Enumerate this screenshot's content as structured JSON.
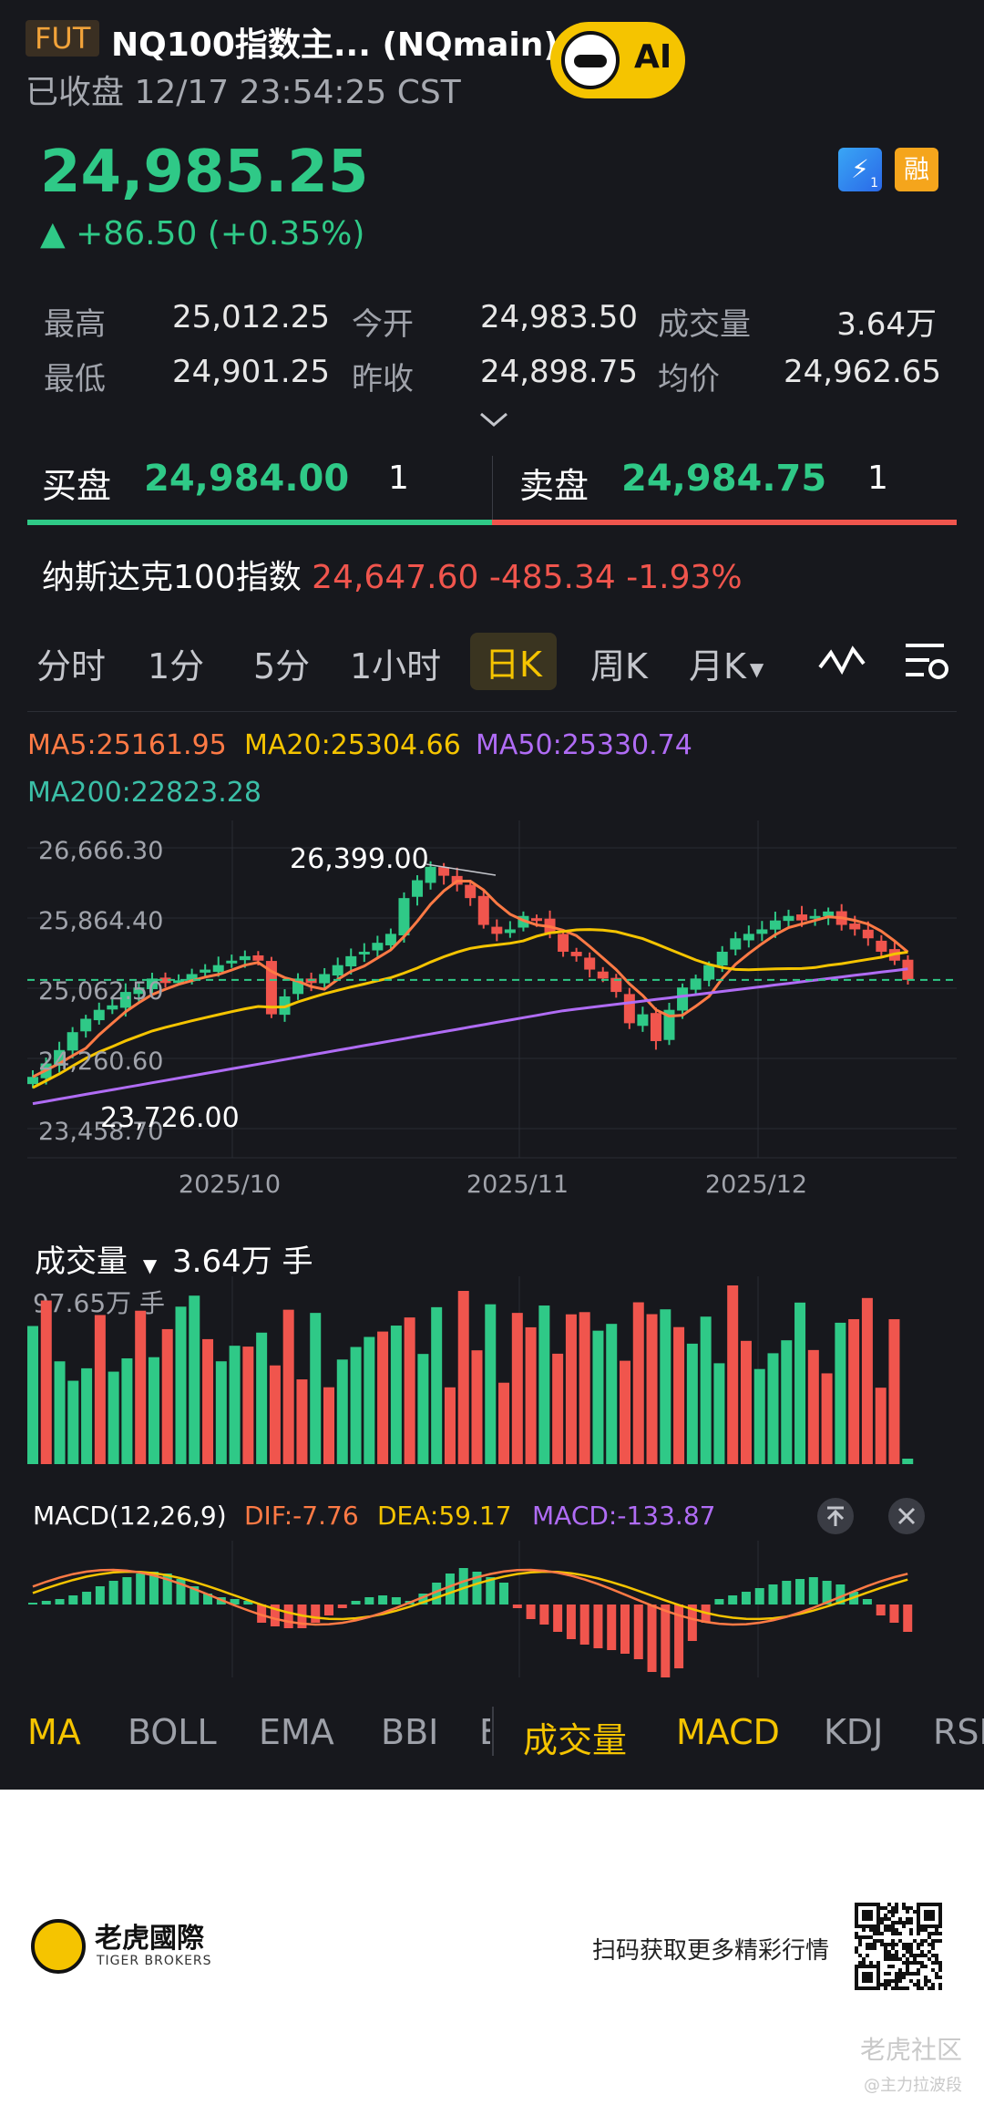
{
  "header": {
    "tag": "FUT",
    "title": "NQ100指数主... (NQmain)",
    "status": "已收盘 12/17 23:54:25 CST",
    "ai_label": "AI"
  },
  "quote": {
    "price": "24,985.25",
    "change": "▲ +86.50 (+0.35%)",
    "badge_flash": "1",
    "badge_margin": "融"
  },
  "stats": [
    {
      "label": "最高",
      "value": "25,012.25"
    },
    {
      "label": "今开",
      "value": "24,983.50"
    },
    {
      "label": "成交量",
      "value": "3.64万"
    },
    {
      "label": "最低",
      "value": "24,901.25"
    },
    {
      "label": "昨收",
      "value": "24,898.75"
    },
    {
      "label": "均价",
      "value": "24,962.65"
    }
  ],
  "orderbook": {
    "bid_label": "买盘",
    "bid_price": "24,984.00",
    "bid_qty": "1",
    "ask_label": "卖盘",
    "ask_price": "24,984.75",
    "ask_qty": "1"
  },
  "index": {
    "name": "纳斯达克100指数",
    "value": "24,647.60 -485.34 -1.93%"
  },
  "tabs": [
    "分时",
    "1分",
    "5分",
    "1小时",
    "日K",
    "周K",
    "月K"
  ],
  "active_tab": "日K",
  "ma_legend": {
    "ma5": "MA5:25161.95",
    "ma20": "MA20:25304.66",
    "ma50": "MA50:25330.74",
    "ma200": "MA200:22823.28"
  },
  "colors": {
    "up": "#2fc987",
    "down": "#f0554d",
    "ma5": "#ff7a45",
    "ma20": "#f5c400",
    "ma50": "#b06cf5",
    "ma200": "#3bbfa7",
    "accent": "#f5c400"
  },
  "chart_data": {
    "type": "candlestick",
    "y_ticks": [
      "26,666.30",
      "25,864.40",
      "25,062.50",
      "24,260.60",
      "23,458.70"
    ],
    "ylim": [
      23458.7,
      26666.3
    ],
    "x_ticks": [
      "2025/10",
      "2025/11",
      "2025/12"
    ],
    "annotations": {
      "high": "26,399.00",
      "low": "23,726.00"
    },
    "last_price": 24985.25
  },
  "volume": {
    "title": "成交量",
    "value": "3.64万 手",
    "max": "97.65万 手"
  },
  "macd": {
    "title": "MACD(12,26,9)",
    "dif": "DIF:-7.76",
    "dea": "DEA:59.17",
    "macd": "MACD:-133.87"
  },
  "indicators_main": [
    "MA",
    "BOLL",
    "EMA",
    "BBI",
    "E"
  ],
  "indicators_sub": [
    "成交量",
    "MACD",
    "KDJ",
    "RSI"
  ],
  "footer": {
    "brand": "老虎國際",
    "brand_sub": "TIGER BROKERS",
    "scan_text": "扫码获取更多精彩行情",
    "watermark": "老虎社区",
    "watermark_user": "@主力拉波段"
  }
}
